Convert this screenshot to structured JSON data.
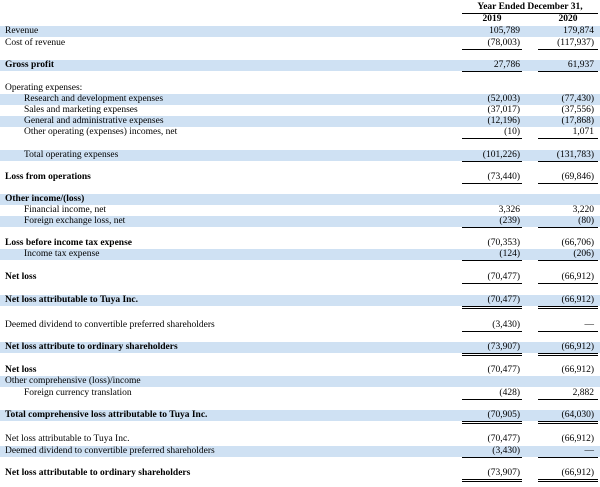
{
  "header": {
    "period": "Year Ended December 31,",
    "years": [
      "2019",
      "2020"
    ]
  },
  "rows": [
    {
      "label": "Revenue",
      "values": [
        "105,789",
        "179,874"
      ]
    },
    {
      "label": "Cost of revenue",
      "values": [
        "(78,003)",
        "(117,937)"
      ]
    },
    {
      "label": "Gross profit",
      "values": [
        "27,786",
        "61,937"
      ]
    },
    {
      "label": "Operating expenses:"
    },
    {
      "label": "Research and development expenses",
      "values": [
        "(52,003)",
        "(77,430)"
      ]
    },
    {
      "label": "Sales and marketing expenses",
      "values": [
        "(37,017)",
        "(37,556)"
      ]
    },
    {
      "label": "General and administrative expenses",
      "values": [
        "(12,196)",
        "(17,868)"
      ]
    },
    {
      "label": "Other operating (expenses) incomes, net",
      "values": [
        "(10)",
        "1,071"
      ]
    },
    {
      "label": "Total operating expenses",
      "values": [
        "(101,226)",
        "(131,783)"
      ]
    },
    {
      "label": "Loss from operations",
      "values": [
        "(73,440)",
        "(69,846)"
      ]
    },
    {
      "label": "Other income/(loss)"
    },
    {
      "label": "Financial income, net",
      "values": [
        "3,326",
        "3,220"
      ]
    },
    {
      "label": "Foreign exchange loss, net",
      "values": [
        "(239)",
        "(80)"
      ]
    },
    {
      "label": "Loss before income tax expense",
      "values": [
        "(70,353)",
        "(66,706)"
      ]
    },
    {
      "label": "Income tax expense",
      "values": [
        "(124)",
        "(206)"
      ]
    },
    {
      "label": "Net loss",
      "values": [
        "(70,477)",
        "(66,912)"
      ]
    },
    {
      "label": "Net loss attributable to Tuya Inc.",
      "values": [
        "(70,477)",
        "(66,912)"
      ]
    },
    {
      "label": "Deemed dividend to convertible preferred shareholders",
      "values": [
        "(3,430)",
        "—"
      ]
    },
    {
      "label": "Net loss attribute to ordinary shareholders",
      "values": [
        "(73,907)",
        "(66,912)"
      ]
    },
    {
      "label": "Net loss",
      "values": [
        "(70,477)",
        "(66,912)"
      ]
    },
    {
      "label": "Other comprehensive (loss)/income"
    },
    {
      "label": "Foreign currency translation",
      "values": [
        "(428)",
        "2,882"
      ]
    },
    {
      "label": "Total comprehensive loss attributable to Tuya Inc.",
      "values": [
        "(70,905)",
        "(64,030)"
      ]
    },
    {
      "label": "Net loss attributable to Tuya Inc.",
      "values": [
        "(70,477)",
        "(66,912)"
      ]
    },
    {
      "label": "Deemed dividend to convertible preferred shareholders",
      "values": [
        "(3,430)",
        "—"
      ]
    },
    {
      "label": "Net loss attributable to ordinary shareholders",
      "values": [
        "(73,907)",
        "(66,912)"
      ]
    }
  ]
}
